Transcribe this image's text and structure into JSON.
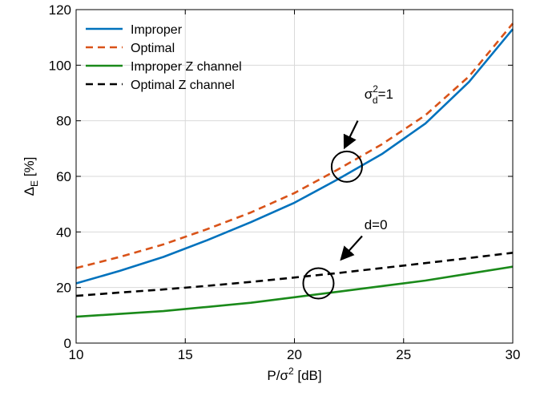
{
  "chart_data": {
    "type": "line",
    "xlabel": "P/σ² [dB]",
    "xlabel_parts": {
      "base": "P/σ",
      "sup": "2",
      "tail": " [dB]"
    },
    "ylabel": "Δ_E [%]",
    "ylabel_parts": {
      "base": "Δ",
      "sub": "E",
      "tail": " [%]"
    },
    "xlim": [
      10,
      30
    ],
    "ylim": [
      0,
      120
    ],
    "xticks": [
      10,
      15,
      20,
      25,
      30
    ],
    "yticks": [
      0,
      20,
      40,
      60,
      80,
      100,
      120
    ],
    "grid": true,
    "legend_position": "top-left",
    "series": [
      {
        "name": "Improper",
        "color": "#0072BD",
        "dash": "solid",
        "x": [
          10,
          12,
          14,
          16,
          18,
          20,
          22,
          24,
          26,
          28,
          30
        ],
        "y": [
          21.5,
          26,
          31,
          37,
          43.5,
          50.5,
          59,
          68,
          79,
          94,
          113
        ]
      },
      {
        "name": "Optimal",
        "color": "#D95319",
        "dash": "dashed",
        "x": [
          10,
          12,
          14,
          16,
          18,
          20,
          22,
          24,
          26,
          28,
          30
        ],
        "y": [
          27,
          31,
          35.5,
          41,
          47,
          54,
          62.5,
          71.5,
          82,
          96,
          115
        ]
      },
      {
        "name": "Improper Z channel",
        "color": "#1A8A1A",
        "dash": "solid",
        "x": [
          10,
          12,
          14,
          16,
          18,
          20,
          22,
          24,
          26,
          28,
          30
        ],
        "y": [
          9.5,
          10.5,
          11.5,
          13,
          14.5,
          16.5,
          18.5,
          20.5,
          22.5,
          25,
          27.5
        ]
      },
      {
        "name": "Optimal Z channel",
        "color": "#000000",
        "dash": "dashed",
        "x": [
          10,
          12,
          14,
          16,
          18,
          20,
          22,
          24,
          26,
          28,
          30
        ],
        "y": [
          17,
          18.2,
          19.3,
          20.6,
          22,
          23.6,
          25.2,
          27,
          28.8,
          30.6,
          32.5
        ]
      }
    ],
    "annotations": [
      {
        "label": "σ_d²=1",
        "label_parts": {
          "base": "σ",
          "sup": "2",
          "sub": "d",
          "tail": "=1"
        },
        "circle_center": [
          22.4,
          63.5
        ],
        "text_anchor": [
          23.2,
          88
        ],
        "arrow_from": [
          22.9,
          80
        ],
        "arrow_to": [
          22.4,
          72
        ]
      },
      {
        "label": "d=0",
        "circle_center": [
          21.1,
          21.5
        ],
        "text_anchor": [
          23.2,
          41
        ],
        "arrow_from": [
          23.1,
          38.5
        ],
        "arrow_to": [
          22.3,
          31.5
        ]
      }
    ]
  }
}
